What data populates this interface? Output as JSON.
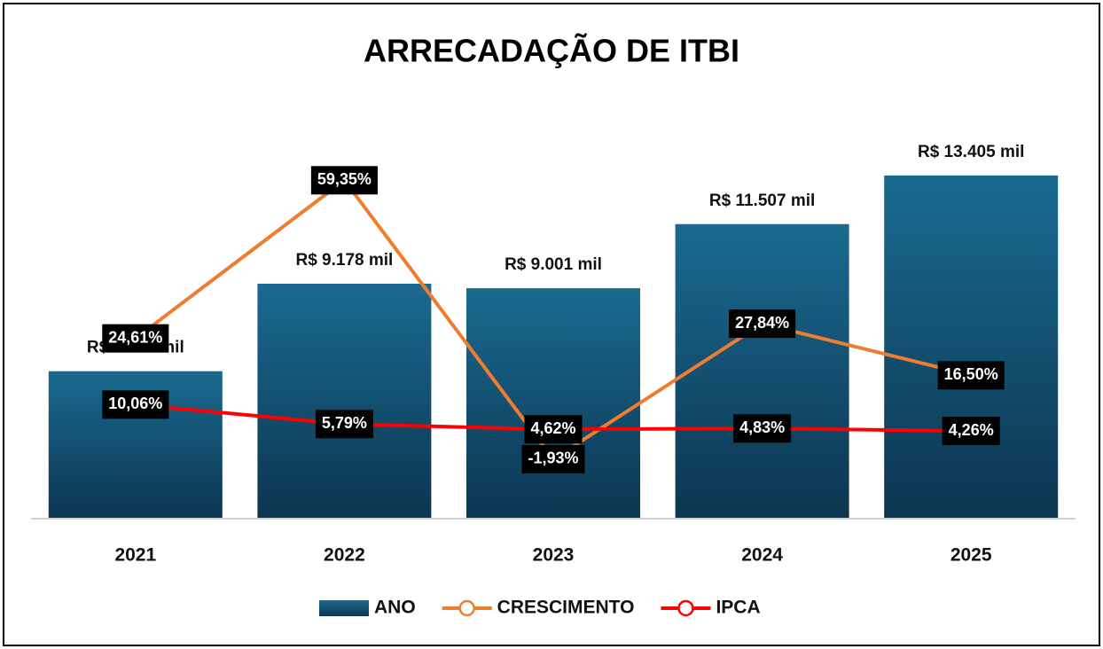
{
  "chart_data": {
    "type": "bar",
    "title": "ARRECADAÇÃO DE ITBI",
    "categories": [
      "2021",
      "2022",
      "2023",
      "2024",
      "2025"
    ],
    "ylim": [
      0,
      16000
    ],
    "y2lim": [
      -15,
      75
    ],
    "series": [
      {
        "name": "ANO",
        "type": "bar",
        "color": "#15597d",
        "values": [
          5760,
          9178,
          9001,
          11507,
          13405
        ],
        "value_labels": [
          "R$ 5.760 mil",
          "R$ 9.178 mil",
          "R$ 9.001 mil",
          "R$ 11.507 mil",
          "R$ 13.405 mil"
        ]
      },
      {
        "name": "CRESCIMENTO",
        "type": "line",
        "axis": "y2",
        "color": "#ed7d31",
        "values": [
          24.61,
          59.35,
          -1.93,
          27.84,
          16.5
        ],
        "value_labels": [
          "24,61%",
          "59,35%",
          "-1,93%",
          "27,84%",
          "16,50%"
        ]
      },
      {
        "name": "IPCA",
        "type": "line",
        "axis": "y2",
        "color": "#ff0000",
        "values": [
          10.06,
          5.79,
          4.62,
          4.83,
          4.26
        ],
        "value_labels": [
          "10,06%",
          "5,79%",
          "4,62%",
          "4,83%",
          "4,26%"
        ]
      }
    ]
  }
}
